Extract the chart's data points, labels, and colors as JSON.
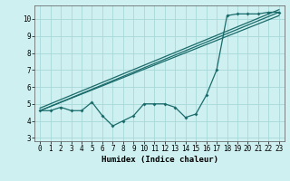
{
  "xlabel": "Humidex (Indice chaleur)",
  "bg_color": "#cff0f0",
  "grid_color": "#a8d8d8",
  "line_color": "#1a6b6b",
  "xlim": [
    -0.5,
    23.5
  ],
  "ylim": [
    2.8,
    10.8
  ],
  "yticks": [
    3,
    4,
    5,
    6,
    7,
    8,
    9,
    10
  ],
  "xticks": [
    0,
    1,
    2,
    3,
    4,
    5,
    6,
    7,
    8,
    9,
    10,
    11,
    12,
    13,
    14,
    15,
    16,
    17,
    18,
    19,
    20,
    21,
    22,
    23
  ],
  "series1_x": [
    0,
    1,
    2,
    3,
    4,
    5,
    6,
    7,
    8,
    9,
    10,
    11,
    12,
    13,
    14,
    15,
    16,
    17,
    18,
    19,
    20,
    21,
    22,
    23
  ],
  "series1_y": [
    4.6,
    4.6,
    4.8,
    4.6,
    4.6,
    5.1,
    4.3,
    3.7,
    4.0,
    4.3,
    5.0,
    5.0,
    5.0,
    4.8,
    4.2,
    4.4,
    5.5,
    7.0,
    10.2,
    10.3,
    10.3,
    10.3,
    10.4,
    10.4
  ],
  "series2_x": [
    0,
    23
  ],
  "series2_y": [
    4.6,
    10.4
  ],
  "series3_y_start": 4.75,
  "series3_y_end": 10.55,
  "series4_y_start": 4.6,
  "series4_y_end": 10.2
}
